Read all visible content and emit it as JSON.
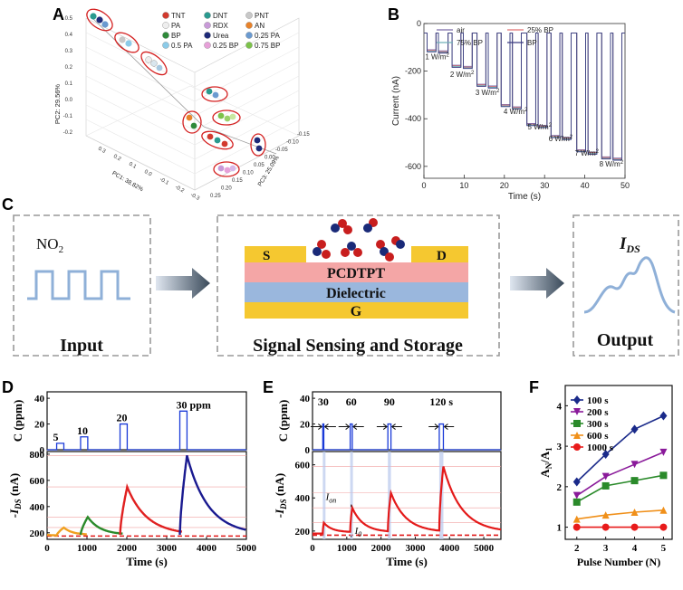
{
  "panel_letters": {
    "a": "A",
    "b": "B",
    "c": "C",
    "d": "D",
    "e": "E",
    "f": "F"
  },
  "panel_c": {
    "input_gas": "NO",
    "input_gas_sub": "2",
    "input_label": "Input",
    "source": "S",
    "drain": "D",
    "semiconductor": "PCDTPT",
    "dielectric": "Dielectric",
    "gate": "G",
    "middle_label": "Signal Sensing and Storage",
    "output_label": "Output",
    "output_symbol": "I",
    "output_symbol_sub": "DS",
    "colors": {
      "yellow": "#f5c830",
      "pink": "#f4a6a6",
      "blue": "#9ab7dd",
      "wave": "#8fb0d8"
    }
  },
  "chart_data": [
    {
      "id": "A",
      "type": "scatter",
      "dimension": "3d",
      "title": "",
      "ylabel": "PC2: 29.56%",
      "xlabel": "PC1: 38.82%",
      "zlabel": "PC3: 25.09%",
      "yticks": [
        "0.5",
        "0.4",
        "0.3",
        "0.2",
        "0.1",
        "0.0",
        "-0.1",
        "-0.2"
      ],
      "xticks": [
        "0.3",
        "0.2",
        "0.1",
        "0.0",
        "-0.1",
        "-0.2",
        "-0.3"
      ],
      "zticks": [
        "0.25",
        "0.20",
        "0.15",
        "0.10",
        "0.05",
        "0.00",
        "-0.05",
        "-0.10",
        "-0.15"
      ],
      "legend": [
        {
          "name": "TNT",
          "color": "#d23a2e"
        },
        {
          "name": "DNT",
          "color": "#2a9a8f"
        },
        {
          "name": "PNT",
          "color": "#c8c8c8"
        },
        {
          "name": "PA",
          "color": "#eeeeee"
        },
        {
          "name": "RDX",
          "color": "#c89ad8"
        },
        {
          "name": "AN",
          "color": "#e8822a"
        },
        {
          "name": "BP",
          "color": "#2e8a3a"
        },
        {
          "name": "Urea",
          "color": "#1e2a78"
        },
        {
          "name": "0.25 PA",
          "color": "#6a9ad0"
        },
        {
          "name": "0.5 PA",
          "color": "#8ccbe8"
        },
        {
          "name": "0.25 BP",
          "color": "#e6a0d8"
        },
        {
          "name": "0.75 BP",
          "color": "#7cc24a"
        }
      ]
    },
    {
      "id": "B",
      "type": "line",
      "title": "",
      "xlabel": "Time (s)",
      "ylabel": "Current (nA)",
      "xlim": [
        0,
        50
      ],
      "ylim": [
        -650,
        0
      ],
      "xticks": [
        "0",
        "10",
        "20",
        "30",
        "40",
        "50"
      ],
      "yticks": [
        "0",
        "-200",
        "-400",
        "-600"
      ],
      "legend": [
        "air",
        "25% BP",
        "75% BP",
        "BP"
      ],
      "series_colors": [
        "#7a6aa8",
        "#e07070",
        "#70b0b8",
        "#3a3a80"
      ],
      "baseline": -40,
      "pulses": [
        {
          "start": 0.8,
          "end": 3.0,
          "level": -110
        },
        {
          "start": 3.6,
          "end": 6.0,
          "level": -115
        },
        {
          "start": 7.0,
          "end": 9.2,
          "level": -175
        },
        {
          "start": 9.8,
          "end": 12.0,
          "level": -180
        },
        {
          "start": 13.2,
          "end": 15.4,
          "level": -255
        },
        {
          "start": 16.0,
          "end": 18.2,
          "level": -262
        },
        {
          "start": 19.2,
          "end": 21.4,
          "level": -340
        },
        {
          "start": 22.0,
          "end": 24.2,
          "level": -350
        },
        {
          "start": 25.6,
          "end": 27.8,
          "level": -420
        },
        {
          "start": 28.4,
          "end": 30.6,
          "level": -428
        },
        {
          "start": 31.6,
          "end": 33.8,
          "level": -470
        },
        {
          "start": 34.4,
          "end": 36.6,
          "level": -478
        },
        {
          "start": 38.0,
          "end": 40.2,
          "level": -530
        },
        {
          "start": 40.8,
          "end": 43.0,
          "level": -540
        },
        {
          "start": 44.2,
          "end": 46.4,
          "level": -560
        },
        {
          "start": 47.0,
          "end": 49.2,
          "level": -565
        }
      ],
      "annotations": [
        {
          "text": "1 W/m",
          "sup": "2",
          "x": 0.3,
          "y": -150
        },
        {
          "text": "2 W/m",
          "sup": "2",
          "x": 6.5,
          "y": -225
        },
        {
          "text": "3 W/m",
          "sup": "2",
          "x": 12.8,
          "y": -300
        },
        {
          "text": "4 W/m",
          "sup": "2",
          "x": 19.8,
          "y": -380
        },
        {
          "text": "5 W/m",
          "sup": "2",
          "x": 25.8,
          "y": -445
        },
        {
          "text": "6 W/m",
          "sup": "2",
          "x": 31.0,
          "y": -495
        },
        {
          "text": "7 W/m",
          "sup": "2",
          "x": 37.5,
          "y": -555
        },
        {
          "text": "8 W/m",
          "sup": "2",
          "x": 43.6,
          "y": -600
        }
      ]
    },
    {
      "id": "D",
      "type": "line",
      "xlabel": "Time (s)",
      "ylabel_top": "C (ppm)",
      "ylabel_bottom_prefix": "-I",
      "ylabel_bottom_sub": "DS",
      "ylabel_bottom_suffix": " (nA)",
      "xlim": [
        0,
        5000
      ],
      "top_ylim": [
        0,
        45
      ],
      "bottom_ylim": [
        150,
        820
      ],
      "xticks": [
        "0",
        "1000",
        "2000",
        "3000",
        "4000",
        "5000"
      ],
      "top_yticks": [
        "0",
        "20",
        "40"
      ],
      "bottom_yticks": [
        "200",
        "400",
        "600",
        "800"
      ],
      "pulses": [
        {
          "start": 240,
          "end": 420,
          "ppm": 5,
          "label": "5"
        },
        {
          "start": 840,
          "end": 1020,
          "ppm": 10,
          "label": "10"
        },
        {
          "start": 1830,
          "end": 2010,
          "ppm": 20,
          "label": "20"
        },
        {
          "start": 3330,
          "end": 3510,
          "ppm": 30,
          "label": "30 ppm"
        }
      ],
      "baseline": 175,
      "series": [
        {
          "color": "#f0a020",
          "start": 0,
          "rise_start": 240,
          "peak_t": 420,
          "peak": 240,
          "end": 1000
        },
        {
          "color": "#2a8a2a",
          "start": 840,
          "rise_start": 840,
          "peak_t": 1020,
          "peak": 320,
          "end": 1900
        },
        {
          "color": "#e02020",
          "start": 1830,
          "rise_start": 1830,
          "peak_t": 2010,
          "peak": 550,
          "end": 3400
        },
        {
          "color": "#1a1a90",
          "start": 3330,
          "rise_start": 3330,
          "peak_t": 3510,
          "peak": 790,
          "end": 5000
        }
      ],
      "reference_levels": [
        240,
        320,
        550,
        790
      ]
    },
    {
      "id": "E",
      "type": "line",
      "xlabel": "Time (s)",
      "ylabel_top": "C (ppm)",
      "ylabel_bottom_prefix": "-I",
      "ylabel_bottom_sub": "DS",
      "ylabel_bottom_suffix": " (nA)",
      "xlim": [
        0,
        5500
      ],
      "top_ylim": [
        0,
        45
      ],
      "bottom_ylim": [
        150,
        680
      ],
      "xticks": [
        "0",
        "1000",
        "2000",
        "3000",
        "4000",
        "5000"
      ],
      "top_yticks": [
        "0",
        "20",
        "40"
      ],
      "bottom_yticks": [
        "200",
        "400",
        "600"
      ],
      "pulses": [
        {
          "start": 300,
          "end": 330,
          "ppm": 20,
          "label": "30"
        },
        {
          "start": 1100,
          "end": 1160,
          "ppm": 20,
          "label": "60"
        },
        {
          "start": 2200,
          "end": 2290,
          "ppm": 20,
          "label": "90"
        },
        {
          "start": 3700,
          "end": 3820,
          "ppm": 20,
          "label": "120 s"
        }
      ],
      "baseline": 175,
      "peaks": [
        250,
        340,
        430,
        590
      ],
      "i_on_label": "I",
      "i_on_sub": "on",
      "i_0_label": "I",
      "i_0_sub": "0",
      "reference_levels": [
        250,
        340,
        430,
        590
      ]
    },
    {
      "id": "F",
      "type": "line",
      "xlabel": "Pulse Number (N)",
      "ylabel": "A",
      "ylabel_sub_n": "N",
      "ylabel_slash": "/A",
      "ylabel_sub_1": "1",
      "x": [
        2,
        3,
        4,
        5
      ],
      "xlim": [
        1.6,
        5.3
      ],
      "ylim": [
        0.7,
        4.5
      ],
      "xticks": [
        "2",
        "3",
        "4",
        "5"
      ],
      "yticks": [
        "1",
        "2",
        "3",
        "4"
      ],
      "series": [
        {
          "name": "100 s",
          "color": "#1a2a8a",
          "marker": "diamond",
          "values": [
            2.12,
            2.8,
            3.42,
            3.75
          ]
        },
        {
          "name": "200 s",
          "color": "#8a1a9a",
          "marker": "tri-down",
          "values": [
            1.78,
            2.25,
            2.55,
            2.85
          ]
        },
        {
          "name": "300 s",
          "color": "#2a8a2a",
          "marker": "square",
          "values": [
            1.62,
            2.02,
            2.15,
            2.28
          ]
        },
        {
          "name": "600 s",
          "color": "#f0901a",
          "marker": "tri-up",
          "values": [
            1.2,
            1.3,
            1.37,
            1.42
          ]
        },
        {
          "name": "1000 s",
          "color": "#e81a1a",
          "marker": "circle",
          "values": [
            1.0,
            1.0,
            1.0,
            1.0
          ]
        }
      ]
    }
  ]
}
